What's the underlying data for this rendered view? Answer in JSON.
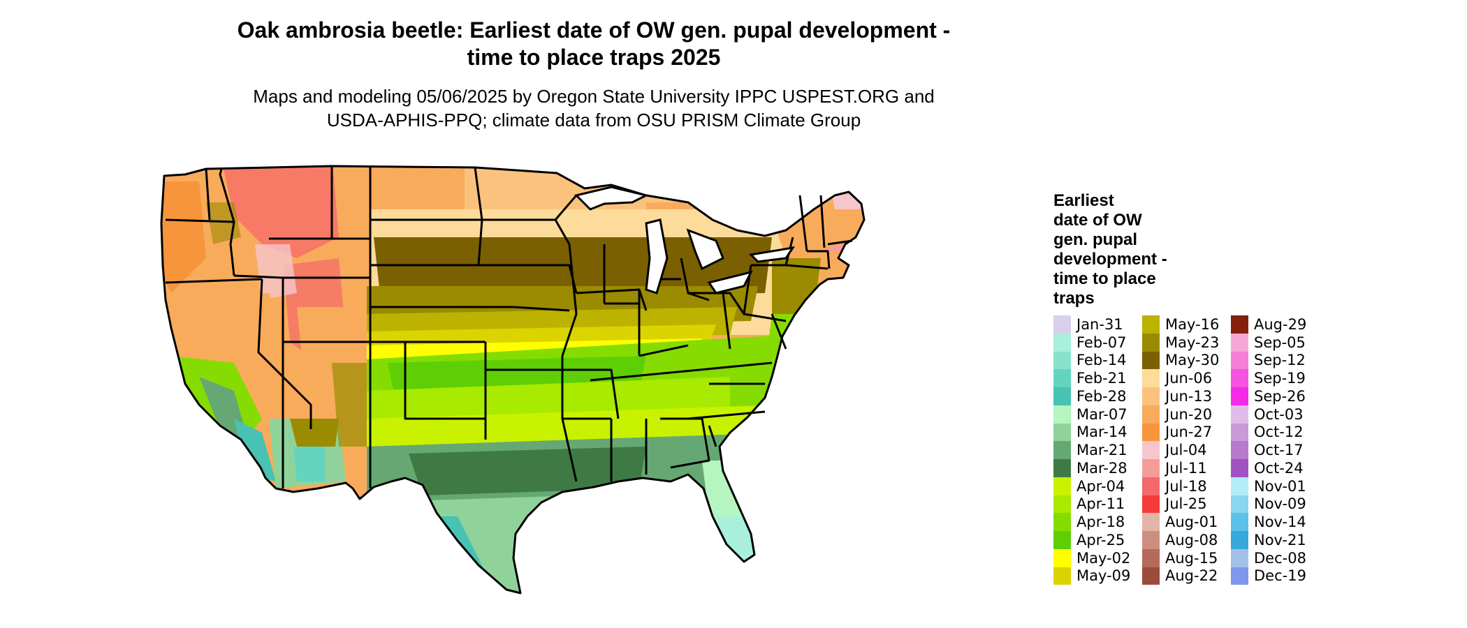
{
  "title_line1": "Oak ambrosia beetle: Earliest date of OW gen. pupal development -",
  "title_line2": "time to place traps 2025",
  "subtitle_line1": "Maps and modeling 05/06/2025 by Oregon State University IPPC USPEST.ORG and",
  "subtitle_line2": "USDA-APHIS-PPQ; climate data from OSU PRISM Climate Group",
  "legend": {
    "title_lines": [
      "Earliest",
      "date of OW",
      "gen. pupal",
      "development -",
      "time to place",
      "traps"
    ],
    "columns": [
      [
        {
          "label": "Jan-31",
          "color": "#d9cfea"
        },
        {
          "label": "Feb-07",
          "color": "#a9f0dc"
        },
        {
          "label": "Feb-14",
          "color": "#87e3cc"
        },
        {
          "label": "Feb-21",
          "color": "#64d4bf"
        },
        {
          "label": "Feb-28",
          "color": "#47c2b3"
        },
        {
          "label": "Mar-07",
          "color": "#b4f5c0"
        },
        {
          "label": "Mar-14",
          "color": "#8fd39a"
        },
        {
          "label": "Mar-21",
          "color": "#66a873"
        },
        {
          "label": "Mar-28",
          "color": "#3f7a45"
        },
        {
          "label": "Apr-04",
          "color": "#c8f200"
        },
        {
          "label": "Apr-11",
          "color": "#a8ea00"
        },
        {
          "label": "Apr-18",
          "color": "#86dc00"
        },
        {
          "label": "Apr-25",
          "color": "#5fcf05"
        },
        {
          "label": "May-02",
          "color": "#ffff00"
        },
        {
          "label": "May-09",
          "color": "#dcd400"
        }
      ],
      [
        {
          "label": "May-16",
          "color": "#bcb200"
        },
        {
          "label": "May-23",
          "color": "#9a8b00"
        },
        {
          "label": "May-30",
          "color": "#7a6000"
        },
        {
          "label": "Jun-06",
          "color": "#fddb9a"
        },
        {
          "label": "Jun-13",
          "color": "#fbc27e"
        },
        {
          "label": "Jun-20",
          "color": "#f9ab5c"
        },
        {
          "label": "Jun-27",
          "color": "#f7953c"
        },
        {
          "label": "Jul-04",
          "color": "#f6c6cc"
        },
        {
          "label": "Jul-11",
          "color": "#f59c9a"
        },
        {
          "label": "Jul-18",
          "color": "#f46a6a"
        },
        {
          "label": "Jul-25",
          "color": "#f53a3a"
        },
        {
          "label": "Aug-01",
          "color": "#e2b5a8"
        },
        {
          "label": "Aug-08",
          "color": "#cc8f7f"
        },
        {
          "label": "Aug-15",
          "color": "#b46b5a"
        },
        {
          "label": "Aug-22",
          "color": "#9c4a3c"
        }
      ],
      [
        {
          "label": "Aug-29",
          "color": "#84200c"
        },
        {
          "label": "Sep-05",
          "color": "#f6a7d8"
        },
        {
          "label": "Sep-12",
          "color": "#f57ed8"
        },
        {
          "label": "Sep-19",
          "color": "#f553e0"
        },
        {
          "label": "Sep-26",
          "color": "#f52ae8"
        },
        {
          "label": "Oct-03",
          "color": "#e0bce8"
        },
        {
          "label": "Oct-12",
          "color": "#c89ad8"
        },
        {
          "label": "Oct-17",
          "color": "#b679cc"
        },
        {
          "label": "Oct-24",
          "color": "#a152c0"
        },
        {
          "label": "Nov-01",
          "color": "#b2ecf7"
        },
        {
          "label": "Nov-09",
          "color": "#86d7ef"
        },
        {
          "label": "Nov-14",
          "color": "#5cc1e6"
        },
        {
          "label": "Nov-21",
          "color": "#36a8dc"
        },
        {
          "label": "Dec-08",
          "color": "#a3c1e6"
        },
        {
          "label": "Dec-19",
          "color": "#7f98ec"
        }
      ]
    ]
  }
}
